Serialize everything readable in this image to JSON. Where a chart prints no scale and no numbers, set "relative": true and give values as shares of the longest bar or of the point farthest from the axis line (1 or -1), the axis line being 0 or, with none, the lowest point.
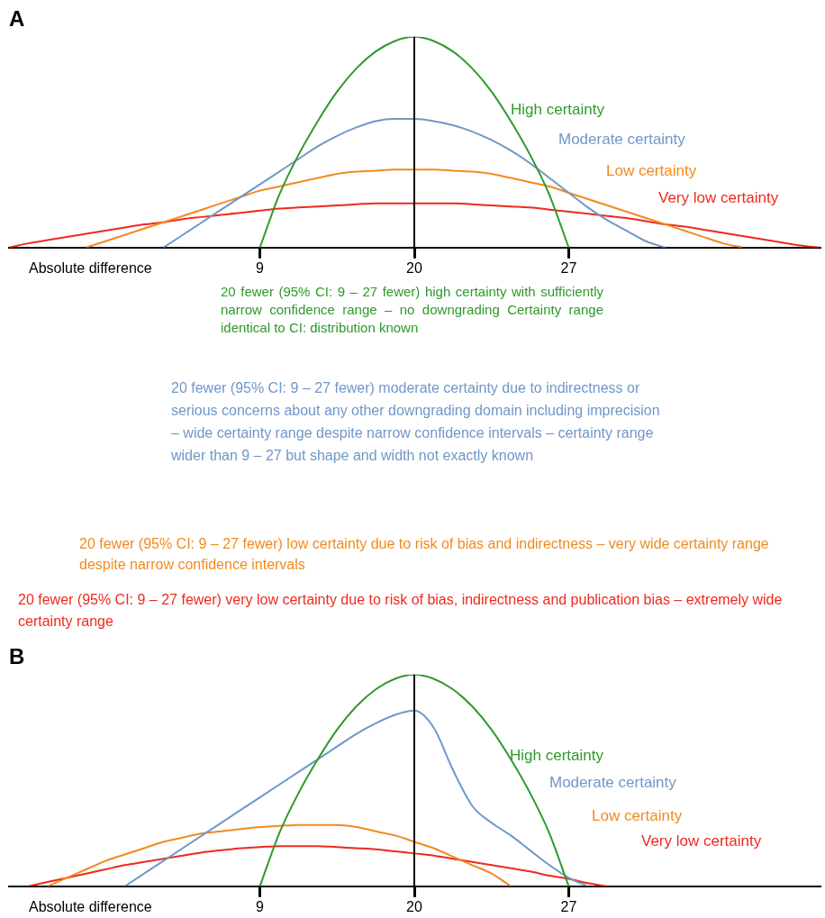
{
  "chart_data": [
    {
      "type": "line",
      "title": "A",
      "xlabel": "Absolute difference",
      "relative": true,
      "legend": false,
      "grid": false,
      "marker": "none",
      "line_style": "solid",
      "categories": [
        null,
        null,
        null,
        null,
        null,
        null,
        null,
        null,
        null,
        null,
        null,
        null,
        null,
        "9",
        null,
        null,
        null,
        null,
        null,
        null,
        null,
        "20",
        null,
        null,
        null,
        null,
        null,
        null,
        null,
        "27",
        null,
        null,
        null,
        null,
        null,
        null,
        null,
        null,
        null,
        null,
        null,
        null,
        null
      ],
      "ref_lines": [
        {
          "axis": "x",
          "value": "20",
          "color": "#000000"
        }
      ],
      "series": [
        {
          "name": "High certainty",
          "color": "#2e9a2a",
          "values": [
            null,
            null,
            null,
            null,
            null,
            null,
            null,
            null,
            null,
            null,
            null,
            null,
            null,
            0,
            0.25,
            0.44,
            0.6,
            0.74,
            0.85,
            0.93,
            0.98,
            1,
            0.98,
            0.93,
            0.85,
            0.74,
            0.6,
            0.44,
            0.25,
            0,
            null,
            null,
            null,
            null,
            null,
            null,
            null,
            null,
            null,
            null,
            null,
            null,
            null
          ]
        },
        {
          "name": "Moderate certainty",
          "color": "#6f97c8",
          "values": [
            null,
            null,
            null,
            null,
            null,
            null,
            null,
            null,
            0,
            0.06,
            0.12,
            0.18,
            0.24,
            0.3,
            0.36,
            0.42,
            0.48,
            0.53,
            0.57,
            0.6,
            0.61,
            0.61,
            0.6,
            0.58,
            0.55,
            0.51,
            0.46,
            0.4,
            0.33,
            0.26,
            0.19,
            0.13,
            0.08,
            0.03,
            0,
            null,
            null,
            null,
            null,
            null,
            null,
            null,
            null
          ]
        },
        {
          "name": "Low certainty",
          "color": "#f28a1e",
          "values": [
            null,
            null,
            null,
            null,
            0,
            0.03,
            0.06,
            0.09,
            0.12,
            0.15,
            0.18,
            0.21,
            0.24,
            0.27,
            0.29,
            0.31,
            0.33,
            0.35,
            0.36,
            0.365,
            0.37,
            0.37,
            0.37,
            0.365,
            0.36,
            0.35,
            0.33,
            0.31,
            0.29,
            0.26,
            0.23,
            0.2,
            0.17,
            0.14,
            0.11,
            0.08,
            0.05,
            0.02,
            0,
            null,
            null,
            null,
            null
          ]
        },
        {
          "name": "Very low certainty",
          "color": "#ee2a1e",
          "values": [
            0,
            0.02,
            0.035,
            0.05,
            0.065,
            0.08,
            0.095,
            0.11,
            0.12,
            0.135,
            0.145,
            0.155,
            0.165,
            0.175,
            0.185,
            0.19,
            0.195,
            0.2,
            0.205,
            0.21,
            0.21,
            0.21,
            0.21,
            0.21,
            0.205,
            0.2,
            0.195,
            0.19,
            0.18,
            0.17,
            0.16,
            0.15,
            0.14,
            0.125,
            0.11,
            0.1,
            0.085,
            0.07,
            0.055,
            0.04,
            0.025,
            0.01,
            0
          ]
        }
      ],
      "annotations": [
        "20 fewer (95% CI: 9 – 27 fewer) high certainty with sufficiently narrow confidence range – no downgrading Certainty range identical to CI: distribution known",
        "20 fewer (95% CI: 9 – 27 fewer) moderate certainty due to indirectness or serious concerns about any other downgrading domain including imprecision – wide certainty range despite narrow confidence intervals – certainty range wider than 9 – 27 but shape and width not exactly known",
        "20 fewer (95% CI: 9 – 27 fewer) low certainty due to risk of bias and indirectness – very wide certainty range despite narrow confidence intervals",
        "20 fewer (95% CI: 9 – 27 fewer) very low certainty due to risk of bias, indirectness and publication bias – extremely wide certainty range"
      ]
    },
    {
      "type": "line",
      "title": "B",
      "xlabel": "Absolute difference",
      "relative": true,
      "legend": false,
      "grid": false,
      "marker": "none",
      "line_style": "solid",
      "categories": [
        null,
        null,
        null,
        null,
        null,
        null,
        null,
        null,
        null,
        null,
        null,
        null,
        null,
        "9",
        null,
        null,
        null,
        null,
        null,
        null,
        null,
        "20",
        null,
        null,
        null,
        null,
        null,
        null,
        null,
        "27",
        null,
        null,
        null,
        null,
        null,
        null,
        null,
        null,
        null,
        null,
        null,
        null,
        null
      ],
      "ref_lines": [
        {
          "axis": "x",
          "value": "20",
          "color": "#000000"
        }
      ],
      "series": [
        {
          "name": "High certainty",
          "color": "#2e9a2a",
          "values": [
            null,
            null,
            null,
            null,
            null,
            null,
            null,
            null,
            null,
            null,
            null,
            null,
            null,
            0,
            0.25,
            0.44,
            0.6,
            0.74,
            0.85,
            0.93,
            0.98,
            1,
            0.98,
            0.93,
            0.85,
            0.74,
            0.6,
            0.44,
            0.25,
            0,
            null,
            null,
            null,
            null,
            null,
            null,
            null,
            null,
            null,
            null,
            null,
            null,
            null
          ]
        },
        {
          "name": "Moderate certainty",
          "color": "#6f97c8",
          "values": [
            null,
            null,
            null,
            null,
            null,
            null,
            0,
            0.06,
            0.12,
            0.18,
            0.24,
            0.3,
            0.36,
            0.42,
            0.48,
            0.54,
            0.6,
            0.66,
            0.72,
            0.77,
            0.81,
            0.83,
            0.75,
            0.55,
            0.38,
            0.3,
            0.24,
            0.17,
            0.1,
            0.04,
            0,
            null,
            null,
            null,
            null,
            null,
            null,
            null,
            null,
            null,
            null,
            null,
            null
          ]
        },
        {
          "name": "Low certainty",
          "color": "#f28a1e",
          "values": [
            null,
            null,
            0,
            0.04,
            0.08,
            0.12,
            0.15,
            0.18,
            0.21,
            0.23,
            0.25,
            0.26,
            0.27,
            0.28,
            0.285,
            0.29,
            0.29,
            0.29,
            0.28,
            0.26,
            0.24,
            0.21,
            0.18,
            0.14,
            0.1,
            0.06,
            0,
            null,
            null,
            null,
            null,
            null,
            null,
            null,
            null,
            null,
            null,
            null,
            null,
            null,
            null,
            null,
            null
          ]
        },
        {
          "name": "Very low certainty",
          "color": "#ee2a1e",
          "values": [
            null,
            0,
            0.02,
            0.04,
            0.06,
            0.08,
            0.1,
            0.115,
            0.13,
            0.145,
            0.16,
            0.17,
            0.18,
            0.185,
            0.19,
            0.19,
            0.19,
            0.185,
            0.18,
            0.175,
            0.165,
            0.155,
            0.145,
            0.13,
            0.115,
            0.1,
            0.085,
            0.07,
            0.05,
            0.035,
            0.015,
            0,
            null,
            null,
            null,
            null,
            null,
            null,
            null,
            null,
            null,
            null,
            null
          ]
        }
      ]
    }
  ]
}
